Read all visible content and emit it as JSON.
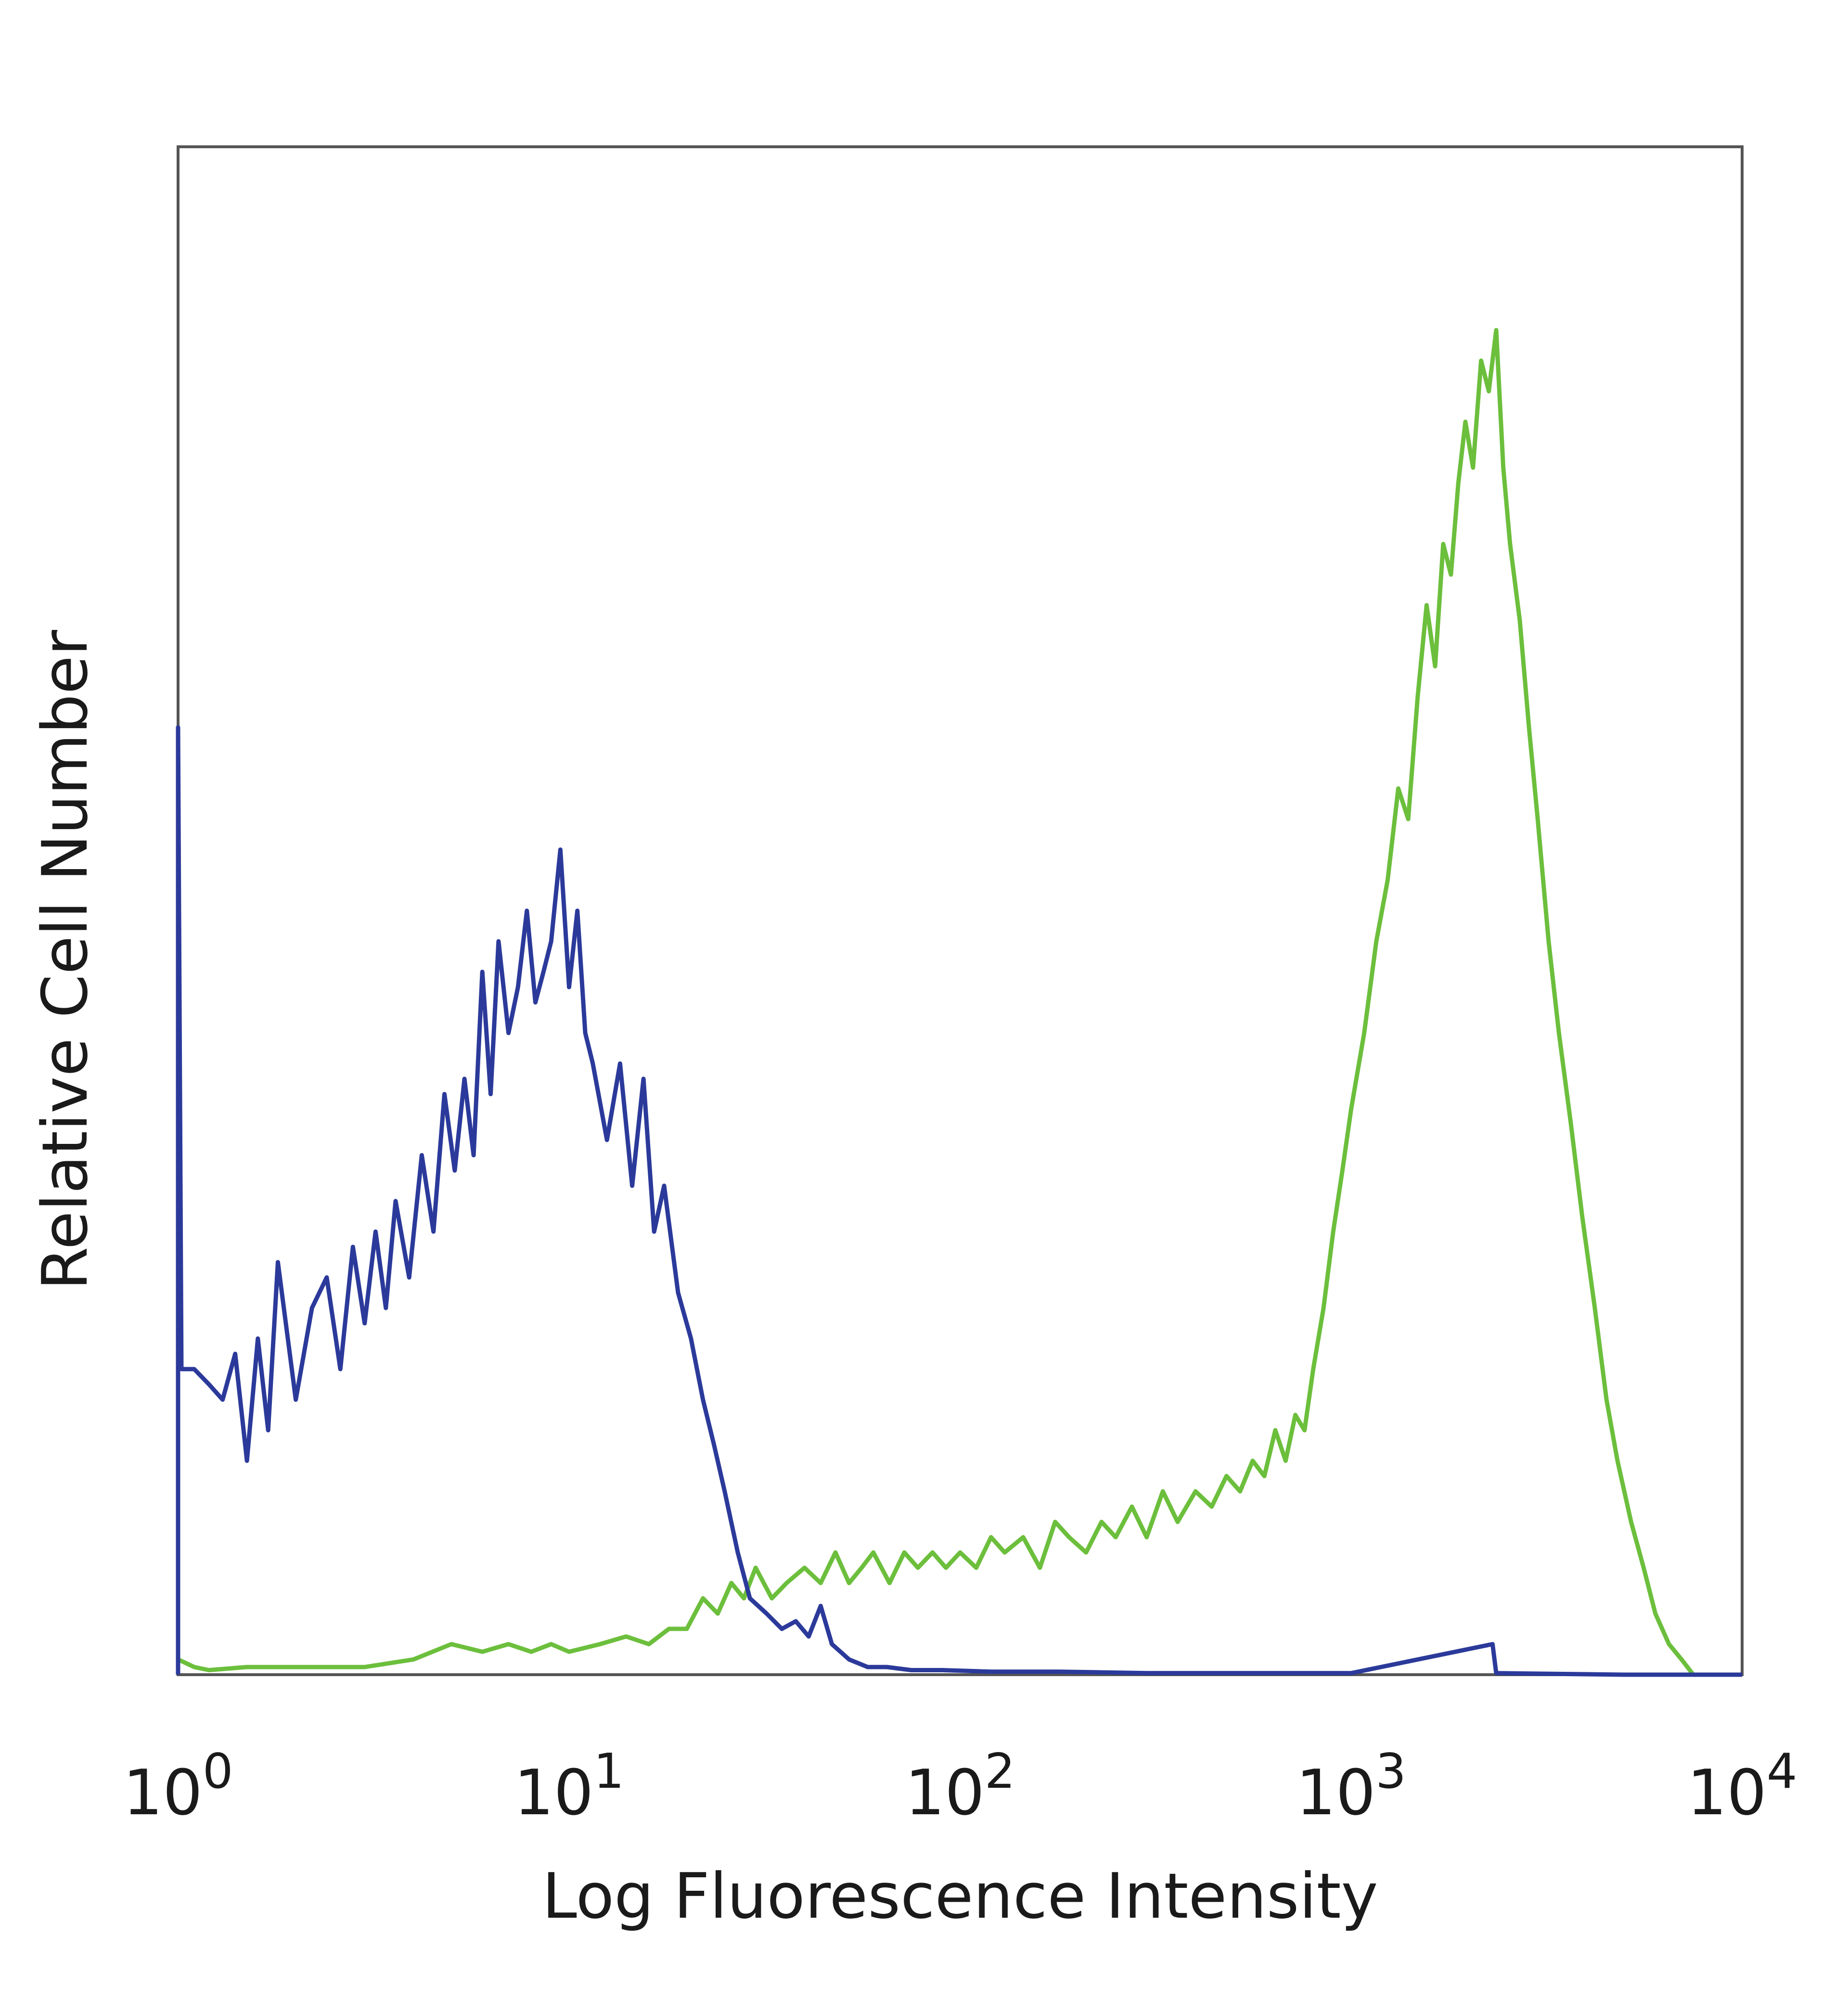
{
  "chart_data": {
    "type": "line",
    "xlabel": "Log Fluorescence Intensity",
    "ylabel": "Relative Cell Number",
    "xscale": "log",
    "xlim": [
      1,
      10000
    ],
    "ylim": [
      0,
      100
    ],
    "grid": false,
    "x_ticks": [
      {
        "value": 1,
        "base": "10",
        "exp": "0"
      },
      {
        "value": 10,
        "base": "10",
        "exp": "1"
      },
      {
        "value": 100,
        "base": "10",
        "exp": "2"
      },
      {
        "value": 1000,
        "base": "10",
        "exp": "3"
      },
      {
        "value": 10000,
        "base": "10",
        "exp": "4"
      }
    ],
    "series": [
      {
        "color": "#2b3a9a",
        "points": [
          [
            1.0,
            0
          ],
          [
            1.0,
            62
          ],
          [
            1.02,
            20
          ],
          [
            1.1,
            20
          ],
          [
            1.2,
            19
          ],
          [
            1.3,
            18
          ],
          [
            1.4,
            21
          ],
          [
            1.5,
            14
          ],
          [
            1.6,
            22
          ],
          [
            1.7,
            16
          ],
          [
            1.8,
            27
          ],
          [
            2.0,
            18
          ],
          [
            2.2,
            24
          ],
          [
            2.4,
            26
          ],
          [
            2.6,
            20
          ],
          [
            2.8,
            28
          ],
          [
            3.0,
            23
          ],
          [
            3.2,
            29
          ],
          [
            3.4,
            24
          ],
          [
            3.6,
            31
          ],
          [
            3.9,
            26
          ],
          [
            4.2,
            34
          ],
          [
            4.5,
            29
          ],
          [
            4.8,
            38
          ],
          [
            5.1,
            33
          ],
          [
            5.4,
            39
          ],
          [
            5.7,
            34
          ],
          [
            6.0,
            46
          ],
          [
            6.3,
            38
          ],
          [
            6.6,
            48
          ],
          [
            7.0,
            42
          ],
          [
            7.4,
            45
          ],
          [
            7.8,
            50
          ],
          [
            8.2,
            44
          ],
          [
            8.6,
            46
          ],
          [
            9.0,
            48
          ],
          [
            9.5,
            54
          ],
          [
            10.0,
            45
          ],
          [
            10.5,
            50
          ],
          [
            11.0,
            42
          ],
          [
            11.5,
            40
          ],
          [
            12.5,
            35
          ],
          [
            13.5,
            40
          ],
          [
            14.5,
            32
          ],
          [
            15.5,
            39
          ],
          [
            16.5,
            29
          ],
          [
            17.5,
            32
          ],
          [
            19.0,
            25
          ],
          [
            20.5,
            22
          ],
          [
            22.0,
            18
          ],
          [
            23.5,
            15
          ],
          [
            25.0,
            12
          ],
          [
            27.0,
            8
          ],
          [
            29.0,
            5
          ],
          [
            32.0,
            4
          ],
          [
            35.0,
            3
          ],
          [
            38.0,
            3.5
          ],
          [
            41.0,
            2.5
          ],
          [
            44.0,
            4.5
          ],
          [
            47.0,
            2
          ],
          [
            52.0,
            1
          ],
          [
            58.0,
            0.5
          ],
          [
            65.0,
            0.5
          ],
          [
            75.0,
            0.3
          ],
          [
            90.0,
            0.3
          ],
          [
            120.0,
            0.2
          ],
          [
            180.0,
            0.2
          ],
          [
            300.0,
            0.1
          ],
          [
            1000.0,
            0.1
          ],
          [
            2300.0,
            2
          ],
          [
            2350.0,
            0.1
          ],
          [
            5000.0,
            0
          ],
          [
            10000.0,
            0
          ]
        ]
      },
      {
        "color": "#6cbf3c",
        "points": [
          [
            1.0,
            1
          ],
          [
            1.1,
            0.5
          ],
          [
            1.2,
            0.3
          ],
          [
            1.5,
            0.5
          ],
          [
            2.0,
            0.5
          ],
          [
            3.0,
            0.5
          ],
          [
            4.0,
            1
          ],
          [
            5.0,
            2
          ],
          [
            6.0,
            1.5
          ],
          [
            7.0,
            2
          ],
          [
            8.0,
            1.5
          ],
          [
            9.0,
            2
          ],
          [
            10.0,
            1.5
          ],
          [
            12.0,
            2
          ],
          [
            14.0,
            2.5
          ],
          [
            16.0,
            2
          ],
          [
            18.0,
            3
          ],
          [
            20.0,
            3
          ],
          [
            22.0,
            5
          ],
          [
            24.0,
            4
          ],
          [
            26.0,
            6
          ],
          [
            28.0,
            5
          ],
          [
            30.0,
            7
          ],
          [
            33.0,
            5
          ],
          [
            36.0,
            6
          ],
          [
            40.0,
            7
          ],
          [
            44.0,
            6
          ],
          [
            48.0,
            8
          ],
          [
            52.0,
            6
          ],
          [
            56.0,
            7
          ],
          [
            60.0,
            8
          ],
          [
            66.0,
            6
          ],
          [
            72.0,
            8
          ],
          [
            78.0,
            7
          ],
          [
            85.0,
            8
          ],
          [
            92.0,
            7
          ],
          [
            100.0,
            8
          ],
          [
            110.0,
            7
          ],
          [
            120.0,
            9
          ],
          [
            130.0,
            8
          ],
          [
            145.0,
            9
          ],
          [
            160.0,
            7
          ],
          [
            175.0,
            10
          ],
          [
            190.0,
            9
          ],
          [
            210.0,
            8
          ],
          [
            230.0,
            10
          ],
          [
            250.0,
            9
          ],
          [
            275.0,
            11
          ],
          [
            300.0,
            9
          ],
          [
            330.0,
            12
          ],
          [
            360.0,
            10
          ],
          [
            400.0,
            12
          ],
          [
            440.0,
            11
          ],
          [
            480.0,
            13
          ],
          [
            520.0,
            12
          ],
          [
            560.0,
            14
          ],
          [
            600.0,
            13
          ],
          [
            640.0,
            16
          ],
          [
            680.0,
            14
          ],
          [
            720.0,
            17
          ],
          [
            760.0,
            16
          ],
          [
            800.0,
            20
          ],
          [
            850.0,
            24
          ],
          [
            900.0,
            29
          ],
          [
            950.0,
            33
          ],
          [
            1000.0,
            37
          ],
          [
            1080.0,
            42
          ],
          [
            1160.0,
            48
          ],
          [
            1240.0,
            52
          ],
          [
            1320.0,
            58
          ],
          [
            1400.0,
            56
          ],
          [
            1480.0,
            64
          ],
          [
            1560.0,
            70
          ],
          [
            1640.0,
            66
          ],
          [
            1720.0,
            74
          ],
          [
            1800.0,
            72
          ],
          [
            1880.0,
            78
          ],
          [
            1960.0,
            82
          ],
          [
            2050.0,
            79
          ],
          [
            2150.0,
            86
          ],
          [
            2250.0,
            84
          ],
          [
            2350.0,
            88
          ],
          [
            2450.0,
            79
          ],
          [
            2550.0,
            74
          ],
          [
            2700.0,
            69
          ],
          [
            2850.0,
            62
          ],
          [
            3000.0,
            56
          ],
          [
            3200.0,
            48
          ],
          [
            3400.0,
            42
          ],
          [
            3650.0,
            36
          ],
          [
            3900.0,
            30
          ],
          [
            4200.0,
            24
          ],
          [
            4500.0,
            18
          ],
          [
            4800.0,
            14
          ],
          [
            5200.0,
            10
          ],
          [
            5600.0,
            7
          ],
          [
            6000.0,
            4
          ],
          [
            6500.0,
            2
          ],
          [
            7000.0,
            1
          ],
          [
            7500.0,
            0
          ]
        ]
      }
    ]
  }
}
